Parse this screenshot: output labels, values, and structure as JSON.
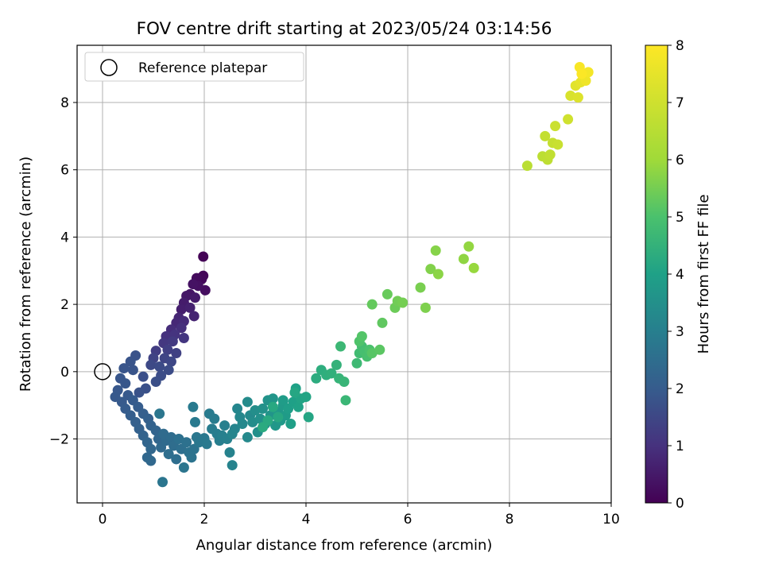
{
  "chart_data": {
    "type": "scatter",
    "title": "FOV centre drift starting at 2023/05/24 03:14:56",
    "xlabel": "Angular distance from reference (arcmin)",
    "ylabel": "Rotation from reference (arcmin)",
    "xlim": [
      -0.5,
      10
    ],
    "ylim": [
      -3.9,
      9.7
    ],
    "xticks": [
      "0",
      "2",
      "4",
      "6",
      "8",
      "10"
    ],
    "yticks": [
      "−2",
      "0",
      "2",
      "4",
      "6",
      "8"
    ],
    "grid": true,
    "legend": {
      "placement": "top-left",
      "entries": [
        "Reference platepar"
      ]
    },
    "reference_point": {
      "x": 0,
      "y": 0
    },
    "colorbar": {
      "label": "Hours from first FF file",
      "range": [
        0,
        8
      ],
      "ticks": [
        "0",
        "1",
        "2",
        "3",
        "4",
        "5",
        "6",
        "7",
        "8"
      ],
      "colormap": "viridis"
    },
    "points": [
      {
        "x": 1.98,
        "y": 3.42,
        "hours": 0.05
      },
      {
        "x": 1.98,
        "y": 2.85,
        "hours": 0.1
      },
      {
        "x": 1.95,
        "y": 2.75,
        "hours": 0.15
      },
      {
        "x": 1.85,
        "y": 2.78,
        "hours": 0.2
      },
      {
        "x": 2.02,
        "y": 2.42,
        "hours": 0.25
      },
      {
        "x": 1.88,
        "y": 2.55,
        "hours": 0.3
      },
      {
        "x": 1.78,
        "y": 2.6,
        "hours": 0.35
      },
      {
        "x": 1.72,
        "y": 2.3,
        "hours": 0.4
      },
      {
        "x": 1.65,
        "y": 2.25,
        "hours": 0.45
      },
      {
        "x": 1.82,
        "y": 2.2,
        "hours": 0.5
      },
      {
        "x": 1.6,
        "y": 2.05,
        "hours": 0.55
      },
      {
        "x": 1.55,
        "y": 1.85,
        "hours": 0.6
      },
      {
        "x": 1.72,
        "y": 1.9,
        "hours": 0.65
      },
      {
        "x": 1.8,
        "y": 1.65,
        "hours": 0.7
      },
      {
        "x": 1.5,
        "y": 1.6,
        "hours": 0.75
      },
      {
        "x": 1.45,
        "y": 1.45,
        "hours": 0.8
      },
      {
        "x": 1.6,
        "y": 1.5,
        "hours": 0.85
      },
      {
        "x": 1.35,
        "y": 1.25,
        "hours": 0.9
      },
      {
        "x": 1.55,
        "y": 1.3,
        "hours": 0.95
      },
      {
        "x": 1.25,
        "y": 1.05,
        "hours": 1.0
      },
      {
        "x": 1.42,
        "y": 1.1,
        "hours": 1.05
      },
      {
        "x": 1.6,
        "y": 1.0,
        "hours": 1.1
      },
      {
        "x": 1.2,
        "y": 0.85,
        "hours": 1.15
      },
      {
        "x": 1.38,
        "y": 0.9,
        "hours": 1.2
      },
      {
        "x": 1.05,
        "y": 0.62,
        "hours": 1.25
      },
      {
        "x": 1.28,
        "y": 0.65,
        "hours": 1.3
      },
      {
        "x": 1.45,
        "y": 0.55,
        "hours": 1.35
      },
      {
        "x": 1.0,
        "y": 0.4,
        "hours": 1.4
      },
      {
        "x": 1.22,
        "y": 0.4,
        "hours": 1.45
      },
      {
        "x": 1.35,
        "y": 0.3,
        "hours": 1.5
      },
      {
        "x": 0.95,
        "y": 0.2,
        "hours": 1.55
      },
      {
        "x": 1.12,
        "y": 0.15,
        "hours": 1.6
      },
      {
        "x": 1.3,
        "y": 0.05,
        "hours": 1.62
      },
      {
        "x": 1.15,
        "y": -0.12,
        "hours": 1.65
      },
      {
        "x": 1.05,
        "y": -0.3,
        "hours": 1.68
      },
      {
        "x": 0.8,
        "y": -0.15,
        "hours": 1.7
      },
      {
        "x": 0.85,
        "y": -0.5,
        "hours": 1.72
      },
      {
        "x": 0.72,
        "y": -0.62,
        "hours": 1.75
      },
      {
        "x": 0.65,
        "y": 0.48,
        "hours": 1.78
      },
      {
        "x": 0.55,
        "y": 0.3,
        "hours": 1.8
      },
      {
        "x": 0.6,
        "y": 0.05,
        "hours": 1.82
      },
      {
        "x": 0.42,
        "y": 0.1,
        "hours": 1.84
      },
      {
        "x": 0.35,
        "y": -0.2,
        "hours": 1.86
      },
      {
        "x": 0.45,
        "y": -0.35,
        "hours": 1.88
      },
      {
        "x": 0.3,
        "y": -0.55,
        "hours": 1.9
      },
      {
        "x": 0.25,
        "y": -0.75,
        "hours": 1.92
      },
      {
        "x": 0.5,
        "y": -0.7,
        "hours": 1.94
      },
      {
        "x": 0.38,
        "y": -0.9,
        "hours": 1.96
      },
      {
        "x": 0.6,
        "y": -0.85,
        "hours": 1.98
      },
      {
        "x": 0.45,
        "y": -1.1,
        "hours": 2.0
      },
      {
        "x": 0.7,
        "y": -1.05,
        "hours": 2.02
      },
      {
        "x": 0.55,
        "y": -1.3,
        "hours": 2.05
      },
      {
        "x": 0.8,
        "y": -1.25,
        "hours": 2.08
      },
      {
        "x": 0.65,
        "y": -1.5,
        "hours": 2.1
      },
      {
        "x": 0.9,
        "y": -1.4,
        "hours": 2.12
      },
      {
        "x": 0.72,
        "y": -1.7,
        "hours": 2.15
      },
      {
        "x": 0.95,
        "y": -1.6,
        "hours": 2.18
      },
      {
        "x": 0.8,
        "y": -1.9,
        "hours": 2.2
      },
      {
        "x": 1.05,
        "y": -1.75,
        "hours": 2.22
      },
      {
        "x": 0.88,
        "y": -2.1,
        "hours": 2.25
      },
      {
        "x": 1.1,
        "y": -2.0,
        "hours": 2.28
      },
      {
        "x": 0.95,
        "y": -2.3,
        "hours": 2.3
      },
      {
        "x": 0.88,
        "y": -2.55,
        "hours": 2.32
      },
      {
        "x": 0.95,
        "y": -2.65,
        "hours": 2.34
      },
      {
        "x": 1.15,
        "y": -2.25,
        "hours": 2.36
      },
      {
        "x": 1.25,
        "y": -2.05,
        "hours": 2.4
      },
      {
        "x": 1.2,
        "y": -1.85,
        "hours": 2.42
      },
      {
        "x": 1.35,
        "y": -1.95,
        "hours": 2.45
      },
      {
        "x": 1.4,
        "y": -2.2,
        "hours": 2.48
      },
      {
        "x": 1.3,
        "y": -2.45,
        "hours": 2.5
      },
      {
        "x": 1.45,
        "y": -2.6,
        "hours": 2.52
      },
      {
        "x": 1.55,
        "y": -2.3,
        "hours": 2.55
      },
      {
        "x": 1.5,
        "y": -2.0,
        "hours": 2.58
      },
      {
        "x": 1.65,
        "y": -2.1,
        "hours": 2.6
      },
      {
        "x": 1.7,
        "y": -2.4,
        "hours": 2.62
      },
      {
        "x": 1.8,
        "y": -2.3,
        "hours": 2.65
      },
      {
        "x": 1.75,
        "y": -2.55,
        "hours": 2.67
      },
      {
        "x": 1.6,
        "y": -2.85,
        "hours": 2.7
      },
      {
        "x": 1.18,
        "y": -3.28,
        "hours": 2.72
      },
      {
        "x": 1.12,
        "y": -1.25,
        "hours": 2.74
      },
      {
        "x": 1.85,
        "y": -1.95,
        "hours": 2.76
      },
      {
        "x": 1.9,
        "y": -2.1,
        "hours": 2.78
      },
      {
        "x": 2.0,
        "y": -1.98,
        "hours": 2.8
      },
      {
        "x": 2.05,
        "y": -2.15,
        "hours": 2.82
      },
      {
        "x": 1.82,
        "y": -1.5,
        "hours": 2.84
      },
      {
        "x": 1.78,
        "y": -1.05,
        "hours": 2.86
      },
      {
        "x": 2.1,
        "y": -1.25,
        "hours": 2.88
      },
      {
        "x": 2.2,
        "y": -1.4,
        "hours": 2.9
      },
      {
        "x": 2.15,
        "y": -1.7,
        "hours": 2.92
      },
      {
        "x": 2.25,
        "y": -1.85,
        "hours": 2.95
      },
      {
        "x": 2.3,
        "y": -2.05,
        "hours": 2.98
      },
      {
        "x": 2.4,
        "y": -1.6,
        "hours": 3.0
      },
      {
        "x": 2.35,
        "y": -1.9,
        "hours": 3.03
      },
      {
        "x": 2.45,
        "y": -2.0,
        "hours": 3.06
      },
      {
        "x": 2.5,
        "y": -2.4,
        "hours": 3.1
      },
      {
        "x": 2.55,
        "y": -2.78,
        "hours": 3.12
      },
      {
        "x": 2.6,
        "y": -1.7,
        "hours": 3.15
      },
      {
        "x": 2.55,
        "y": -1.85,
        "hours": 3.18
      },
      {
        "x": 2.65,
        "y": -1.1,
        "hours": 3.2
      },
      {
        "x": 2.7,
        "y": -1.35,
        "hours": 3.23
      },
      {
        "x": 2.75,
        "y": -1.55,
        "hours": 3.26
      },
      {
        "x": 2.85,
        "y": -1.95,
        "hours": 3.3
      },
      {
        "x": 2.9,
        "y": -1.3,
        "hours": 3.33
      },
      {
        "x": 2.85,
        "y": -0.9,
        "hours": 3.36
      },
      {
        "x": 2.95,
        "y": -1.5,
        "hours": 3.4
      },
      {
        "x": 3.0,
        "y": -1.15,
        "hours": 3.43
      },
      {
        "x": 3.05,
        "y": -1.8,
        "hours": 3.46
      },
      {
        "x": 3.1,
        "y": -1.4,
        "hours": 3.5
      },
      {
        "x": 3.15,
        "y": -1.1,
        "hours": 3.53
      },
      {
        "x": 3.2,
        "y": -1.55,
        "hours": 3.56
      },
      {
        "x": 3.25,
        "y": -0.85,
        "hours": 3.6
      },
      {
        "x": 3.3,
        "y": -1.3,
        "hours": 3.63
      },
      {
        "x": 3.35,
        "y": -0.8,
        "hours": 3.66
      },
      {
        "x": 3.4,
        "y": -1.6,
        "hours": 3.7
      },
      {
        "x": 3.45,
        "y": -1.2,
        "hours": 3.73
      },
      {
        "x": 3.5,
        "y": -1.45,
        "hours": 3.76
      },
      {
        "x": 3.55,
        "y": -1.0,
        "hours": 3.8
      },
      {
        "x": 3.6,
        "y": -1.3,
        "hours": 3.83
      },
      {
        "x": 3.55,
        "y": -0.85,
        "hours": 3.86
      },
      {
        "x": 3.65,
        "y": -1.1,
        "hours": 3.9
      },
      {
        "x": 3.7,
        "y": -1.55,
        "hours": 3.93
      },
      {
        "x": 3.75,
        "y": -0.9,
        "hours": 3.96
      },
      {
        "x": 3.8,
        "y": -0.5,
        "hours": 4.0
      },
      {
        "x": 3.85,
        "y": -1.05,
        "hours": 4.03
      },
      {
        "x": 3.9,
        "y": -0.8,
        "hours": 4.06
      },
      {
        "x": 4.0,
        "y": -0.75,
        "hours": 4.1
      },
      {
        "x": 4.05,
        "y": -1.35,
        "hours": 4.13
      },
      {
        "x": 3.78,
        "y": -0.62,
        "hours": 4.16
      },
      {
        "x": 3.45,
        "y": -1.35,
        "hours": 4.2
      },
      {
        "x": 3.35,
        "y": -1.05,
        "hours": 4.22
      },
      {
        "x": 3.25,
        "y": -1.45,
        "hours": 4.25
      },
      {
        "x": 3.15,
        "y": -1.65,
        "hours": 4.28
      },
      {
        "x": 4.2,
        "y": -0.2,
        "hours": 4.32
      },
      {
        "x": 4.3,
        "y": 0.05,
        "hours": 4.36
      },
      {
        "x": 4.4,
        "y": -0.1,
        "hours": 4.4
      },
      {
        "x": 4.5,
        "y": -0.05,
        "hours": 4.45
      },
      {
        "x": 4.6,
        "y": 0.2,
        "hours": 4.5
      },
      {
        "x": 4.65,
        "y": -0.2,
        "hours": 4.55
      },
      {
        "x": 4.75,
        "y": -0.3,
        "hours": 4.6
      },
      {
        "x": 4.78,
        "y": -0.85,
        "hours": 4.65
      },
      {
        "x": 4.68,
        "y": 0.75,
        "hours": 4.7
      },
      {
        "x": 5.0,
        "y": 0.25,
        "hours": 4.75
      },
      {
        "x": 5.05,
        "y": 0.55,
        "hours": 4.8
      },
      {
        "x": 5.1,
        "y": 0.75,
        "hours": 4.85
      },
      {
        "x": 5.15,
        "y": 0.6,
        "hours": 4.9
      },
      {
        "x": 5.2,
        "y": 0.45,
        "hours": 4.95
      },
      {
        "x": 5.25,
        "y": 0.65,
        "hours": 5.0
      },
      {
        "x": 5.05,
        "y": 0.9,
        "hours": 5.05
      },
      {
        "x": 5.1,
        "y": 1.05,
        "hours": 5.1
      },
      {
        "x": 5.3,
        "y": 0.55,
        "hours": 5.15
      },
      {
        "x": 5.45,
        "y": 0.65,
        "hours": 5.2
      },
      {
        "x": 5.5,
        "y": 1.45,
        "hours": 5.25
      },
      {
        "x": 5.3,
        "y": 2.0,
        "hours": 5.3
      },
      {
        "x": 5.6,
        "y": 2.3,
        "hours": 5.35
      },
      {
        "x": 5.75,
        "y": 1.9,
        "hours": 5.4
      },
      {
        "x": 5.8,
        "y": 2.1,
        "hours": 5.45
      },
      {
        "x": 5.9,
        "y": 2.05,
        "hours": 5.5
      },
      {
        "x": 6.25,
        "y": 2.5,
        "hours": 5.55
      },
      {
        "x": 6.35,
        "y": 1.9,
        "hours": 5.6
      },
      {
        "x": 6.45,
        "y": 3.05,
        "hours": 5.65
      },
      {
        "x": 6.55,
        "y": 3.6,
        "hours": 5.7
      },
      {
        "x": 6.6,
        "y": 2.9,
        "hours": 5.75
      },
      {
        "x": 7.1,
        "y": 3.35,
        "hours": 5.8
      },
      {
        "x": 7.2,
        "y": 3.72,
        "hours": 5.85
      },
      {
        "x": 7.3,
        "y": 3.08,
        "hours": 5.9
      },
      {
        "x": 8.35,
        "y": 6.12,
        "hours": 6.55
      },
      {
        "x": 8.65,
        "y": 6.4,
        "hours": 6.6
      },
      {
        "x": 8.75,
        "y": 6.3,
        "hours": 6.65
      },
      {
        "x": 8.8,
        "y": 6.45,
        "hours": 6.7
      },
      {
        "x": 8.7,
        "y": 7.0,
        "hours": 6.75
      },
      {
        "x": 8.85,
        "y": 6.8,
        "hours": 6.8
      },
      {
        "x": 8.95,
        "y": 6.75,
        "hours": 6.85
      },
      {
        "x": 8.9,
        "y": 7.3,
        "hours": 6.9
      },
      {
        "x": 9.15,
        "y": 7.5,
        "hours": 7.0
      },
      {
        "x": 9.2,
        "y": 8.2,
        "hours": 7.2
      },
      {
        "x": 9.35,
        "y": 8.15,
        "hours": 7.3
      },
      {
        "x": 9.3,
        "y": 8.5,
        "hours": 7.4
      },
      {
        "x": 9.4,
        "y": 8.6,
        "hours": 7.5
      },
      {
        "x": 9.45,
        "y": 8.75,
        "hours": 7.6
      },
      {
        "x": 9.5,
        "y": 8.65,
        "hours": 7.7
      },
      {
        "x": 9.55,
        "y": 8.9,
        "hours": 7.8
      },
      {
        "x": 9.38,
        "y": 9.05,
        "hours": 7.9
      },
      {
        "x": 9.42,
        "y": 8.85,
        "hours": 7.95
      }
    ]
  }
}
